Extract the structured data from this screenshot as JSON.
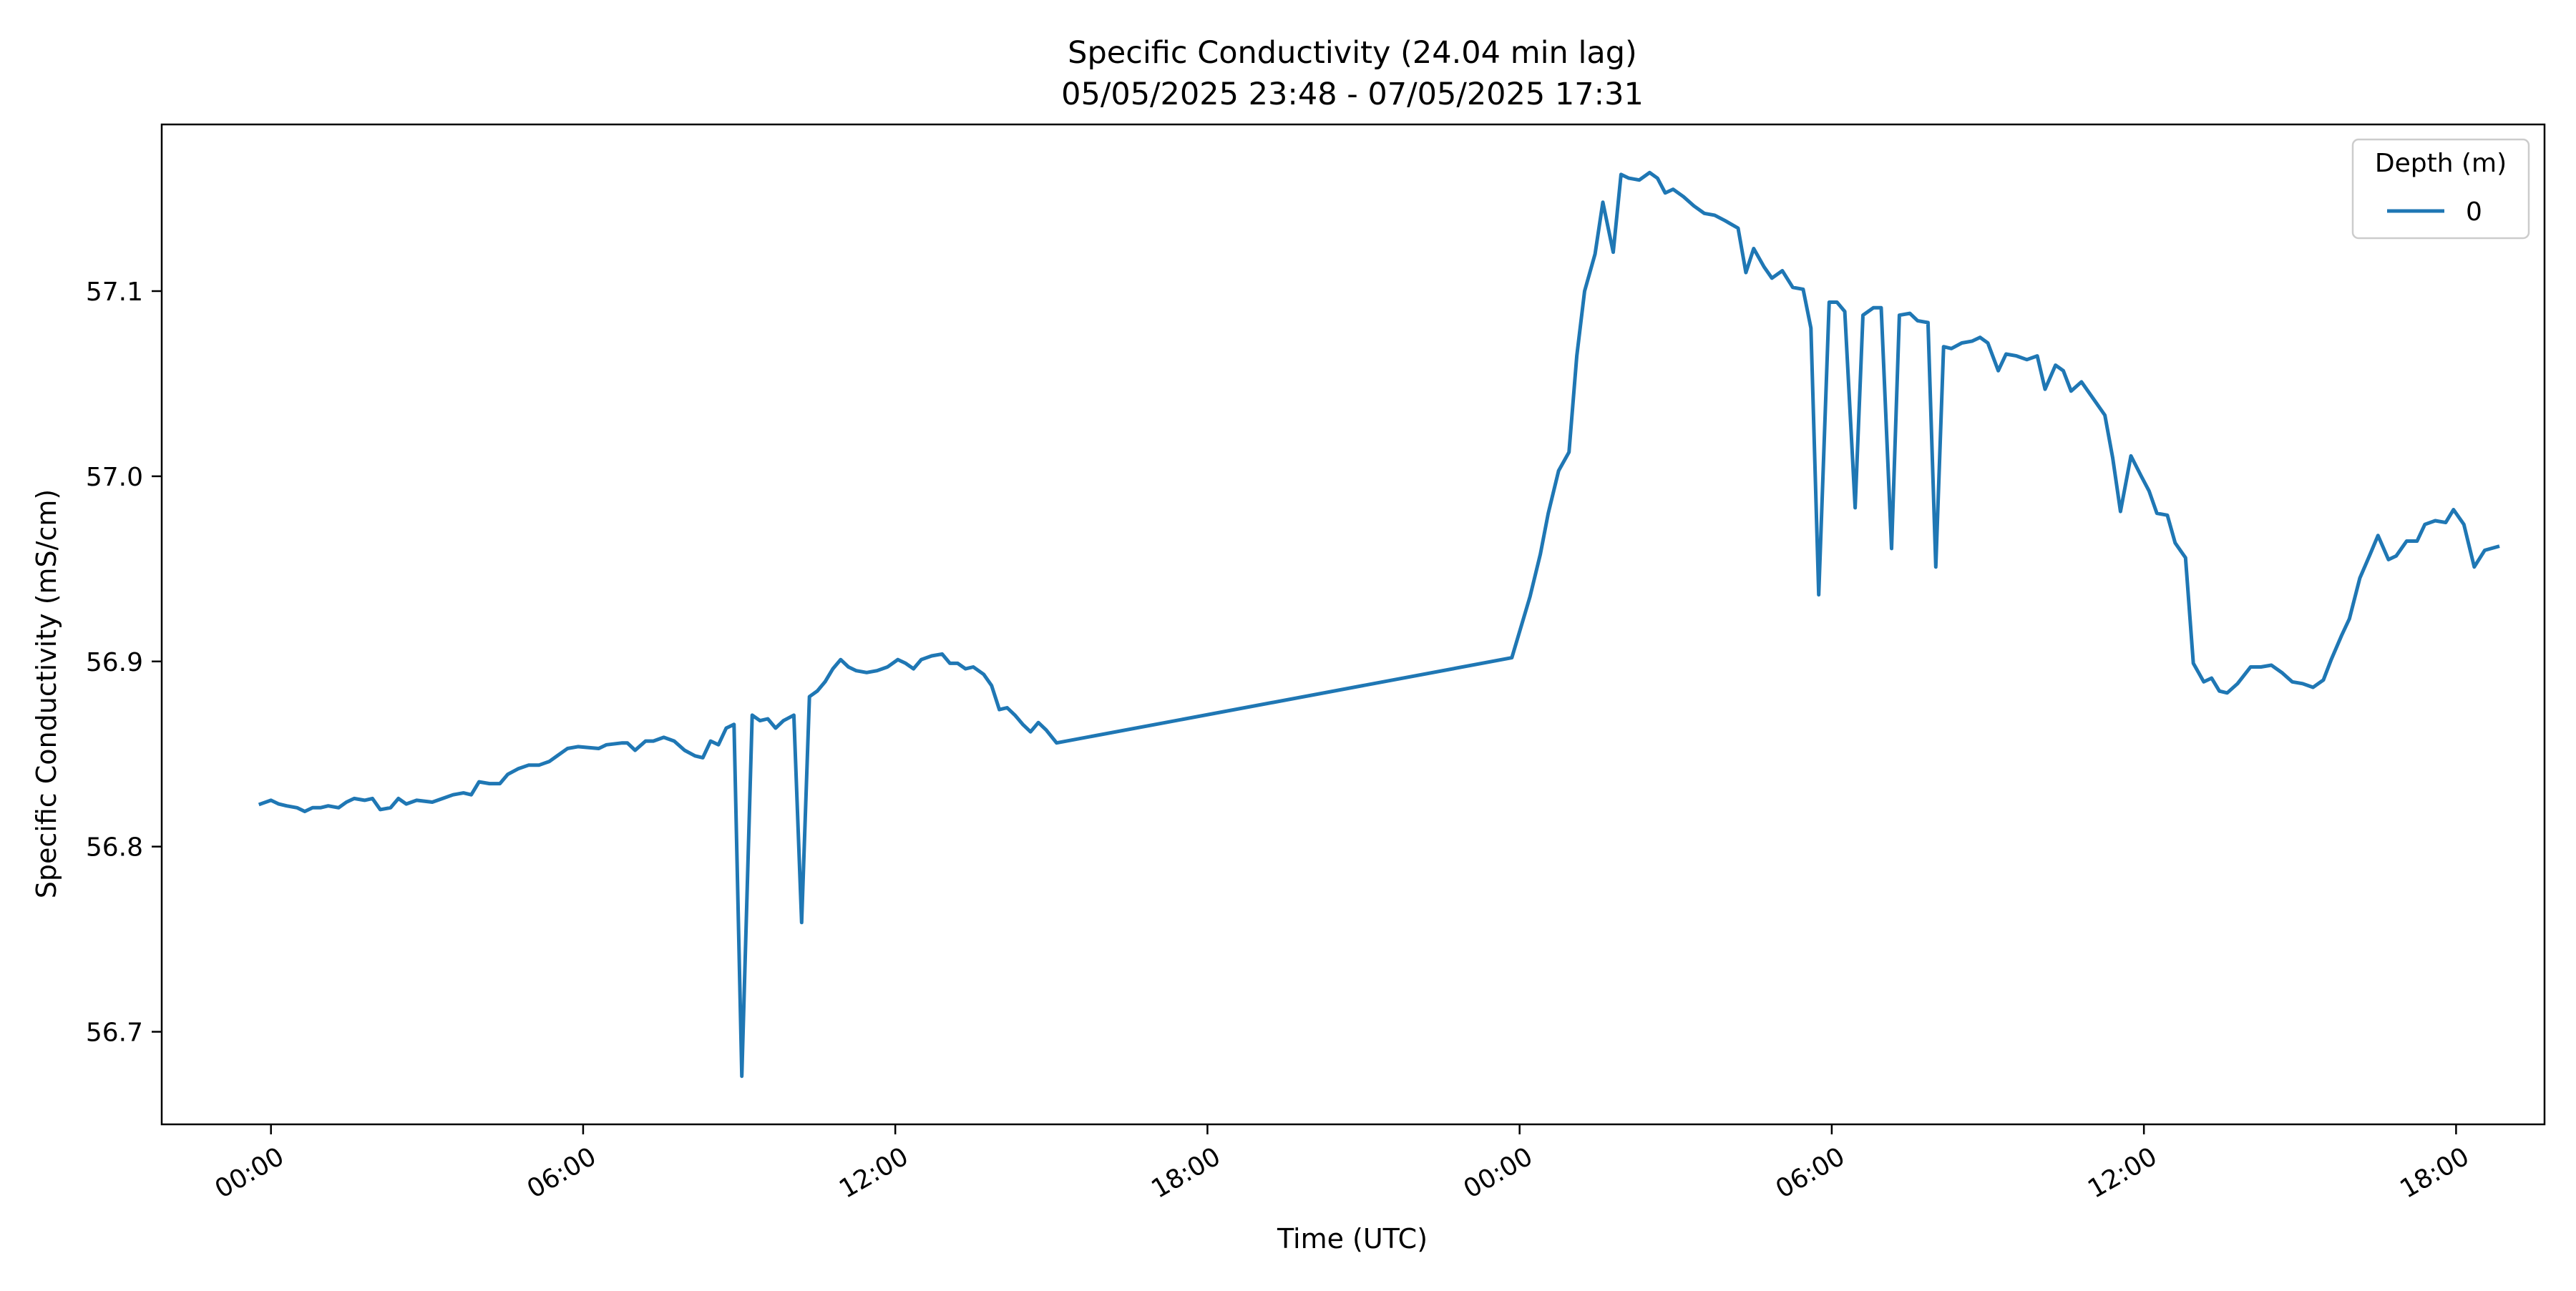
{
  "chart_data": {
    "type": "line",
    "title": "Specific Conductivity (24.04 min lag)",
    "subtitle": "05/05/2025 23:48 - 07/05/2025 17:31",
    "xlabel": "Time (UTC)",
    "ylabel": "Specific Conductivity (mS/cm)",
    "x_unit": "hours",
    "xlim": [
      -2.1,
      43.7
    ],
    "ylim": [
      56.65,
      57.19
    ],
    "x_ticks": [
      {
        "value": 0,
        "label": "00:00"
      },
      {
        "value": 6,
        "label": "06:00"
      },
      {
        "value": 12,
        "label": "12:00"
      },
      {
        "value": 18,
        "label": "18:00"
      },
      {
        "value": 24,
        "label": "00:00"
      },
      {
        "value": 30,
        "label": "06:00"
      },
      {
        "value": 36,
        "label": "12:00"
      },
      {
        "value": 42,
        "label": "18:00"
      }
    ],
    "y_ticks": [
      {
        "value": 56.7,
        "label": "56.7"
      },
      {
        "value": 56.8,
        "label": "56.8"
      },
      {
        "value": 56.9,
        "label": "56.9"
      },
      {
        "value": 57.0,
        "label": "57.0"
      },
      {
        "value": 57.1,
        "label": "57.1"
      }
    ],
    "grid": false,
    "legend": {
      "title": "Depth (m)",
      "position": "top-right"
    },
    "series": [
      {
        "name": "0",
        "color": "#1f77b4",
        "points": [
          [
            -0.2,
            56.823
          ],
          [
            0.0,
            56.825
          ],
          [
            0.15,
            56.823
          ],
          [
            0.3,
            56.822
          ],
          [
            0.5,
            56.821
          ],
          [
            0.65,
            56.819
          ],
          [
            0.8,
            56.821
          ],
          [
            0.95,
            56.821
          ],
          [
            1.1,
            56.822
          ],
          [
            1.3,
            56.821
          ],
          [
            1.45,
            56.824
          ],
          [
            1.6,
            56.826
          ],
          [
            1.8,
            56.825
          ],
          [
            1.95,
            56.826
          ],
          [
            2.1,
            56.82
          ],
          [
            2.3,
            56.821
          ],
          [
            2.45,
            56.826
          ],
          [
            2.6,
            56.823
          ],
          [
            2.8,
            56.825
          ],
          [
            3.1,
            56.824
          ],
          [
            3.3,
            56.826
          ],
          [
            3.5,
            56.828
          ],
          [
            3.7,
            56.829
          ],
          [
            3.85,
            56.828
          ],
          [
            4.0,
            56.835
          ],
          [
            4.2,
            56.834
          ],
          [
            4.4,
            56.834
          ],
          [
            4.55,
            56.839
          ],
          [
            4.75,
            56.842
          ],
          [
            4.95,
            56.844
          ],
          [
            5.15,
            56.844
          ],
          [
            5.35,
            56.846
          ],
          [
            5.5,
            56.849
          ],
          [
            5.7,
            56.853
          ],
          [
            5.9,
            56.854
          ],
          [
            6.3,
            56.853
          ],
          [
            6.45,
            56.855
          ],
          [
            6.75,
            56.856
          ],
          [
            6.85,
            56.856
          ],
          [
            7.0,
            56.852
          ],
          [
            7.2,
            56.857
          ],
          [
            7.35,
            56.857
          ],
          [
            7.55,
            56.859
          ],
          [
            7.75,
            56.857
          ],
          [
            7.95,
            56.852
          ],
          [
            8.15,
            56.849
          ],
          [
            8.3,
            56.848
          ],
          [
            8.45,
            56.857
          ],
          [
            8.6,
            56.855
          ],
          [
            8.75,
            56.864
          ],
          [
            8.9,
            56.866
          ],
          [
            9.05,
            56.676
          ],
          [
            9.25,
            56.871
          ],
          [
            9.4,
            56.868
          ],
          [
            9.55,
            56.869
          ],
          [
            9.7,
            56.864
          ],
          [
            9.85,
            56.868
          ],
          [
            10.05,
            56.871
          ],
          [
            10.2,
            56.759
          ],
          [
            10.35,
            56.881
          ],
          [
            10.5,
            56.884
          ],
          [
            10.65,
            56.889
          ],
          [
            10.8,
            56.896
          ],
          [
            10.95,
            56.901
          ],
          [
            11.1,
            56.897
          ],
          [
            11.25,
            56.895
          ],
          [
            11.45,
            56.894
          ],
          [
            11.65,
            56.895
          ],
          [
            11.85,
            56.897
          ],
          [
            12.05,
            56.901
          ],
          [
            12.2,
            56.899
          ],
          [
            12.35,
            56.896
          ],
          [
            12.5,
            56.901
          ],
          [
            12.7,
            56.903
          ],
          [
            12.9,
            56.904
          ],
          [
            13.05,
            56.899
          ],
          [
            13.2,
            56.899
          ],
          [
            13.35,
            56.896
          ],
          [
            13.5,
            56.897
          ],
          [
            13.7,
            56.893
          ],
          [
            13.85,
            56.887
          ],
          [
            14.0,
            56.874
          ],
          [
            14.15,
            56.875
          ],
          [
            14.3,
            56.871
          ],
          [
            14.45,
            56.866
          ],
          [
            14.6,
            56.862
          ],
          [
            14.75,
            56.867
          ],
          [
            14.9,
            56.863
          ],
          [
            15.1,
            56.856
          ],
          [
            23.85,
            56.902
          ],
          [
            24.2,
            56.935
          ],
          [
            24.4,
            56.958
          ],
          [
            24.55,
            56.98
          ],
          [
            24.75,
            57.003
          ],
          [
            24.95,
            57.013
          ],
          [
            25.1,
            57.065
          ],
          [
            25.25,
            57.1
          ],
          [
            25.45,
            57.12
          ],
          [
            25.6,
            57.148
          ],
          [
            25.8,
            57.121
          ],
          [
            25.95,
            57.163
          ],
          [
            26.1,
            57.161
          ],
          [
            26.3,
            57.16
          ],
          [
            26.5,
            57.164
          ],
          [
            26.65,
            57.161
          ],
          [
            26.8,
            57.153
          ],
          [
            26.95,
            57.155
          ],
          [
            27.15,
            57.151
          ],
          [
            27.35,
            57.146
          ],
          [
            27.55,
            57.142
          ],
          [
            27.75,
            57.141
          ],
          [
            27.95,
            57.138
          ],
          [
            28.2,
            57.134
          ],
          [
            28.35,
            57.11
          ],
          [
            28.5,
            57.123
          ],
          [
            28.7,
            57.113
          ],
          [
            28.85,
            57.107
          ],
          [
            29.05,
            57.111
          ],
          [
            29.25,
            57.102
          ],
          [
            29.45,
            57.101
          ],
          [
            29.6,
            57.08
          ],
          [
            29.75,
            56.936
          ],
          [
            29.95,
            57.094
          ],
          [
            30.1,
            57.094
          ],
          [
            30.25,
            57.089
          ],
          [
            30.45,
            56.983
          ],
          [
            30.6,
            57.087
          ],
          [
            30.8,
            57.091
          ],
          [
            30.95,
            57.091
          ],
          [
            31.15,
            56.961
          ],
          [
            31.3,
            57.087
          ],
          [
            31.5,
            57.088
          ],
          [
            31.65,
            57.084
          ],
          [
            31.85,
            57.083
          ],
          [
            32.0,
            56.951
          ],
          [
            32.15,
            57.07
          ],
          [
            32.3,
            57.069
          ],
          [
            32.5,
            57.072
          ],
          [
            32.7,
            57.073
          ],
          [
            32.85,
            57.075
          ],
          [
            33.0,
            57.072
          ],
          [
            33.2,
            57.057
          ],
          [
            33.35,
            57.066
          ],
          [
            33.55,
            57.065
          ],
          [
            33.75,
            57.063
          ],
          [
            33.95,
            57.065
          ],
          [
            34.1,
            57.047
          ],
          [
            34.3,
            57.06
          ],
          [
            34.45,
            57.057
          ],
          [
            34.6,
            57.046
          ],
          [
            34.8,
            57.051
          ],
          [
            34.95,
            57.045
          ],
          [
            35.1,
            57.039
          ],
          [
            35.25,
            57.033
          ],
          [
            35.4,
            57.01
          ],
          [
            35.55,
            56.981
          ],
          [
            35.75,
            57.011
          ],
          [
            35.95,
            57.0
          ],
          [
            36.1,
            56.992
          ],
          [
            36.25,
            56.98
          ],
          [
            36.45,
            56.979
          ],
          [
            36.6,
            56.964
          ],
          [
            36.8,
            56.956
          ],
          [
            36.95,
            56.899
          ],
          [
            37.15,
            56.889
          ],
          [
            37.3,
            56.891
          ],
          [
            37.45,
            56.884
          ],
          [
            37.6,
            56.883
          ],
          [
            37.8,
            56.888
          ],
          [
            38.05,
            56.897
          ],
          [
            38.25,
            56.897
          ],
          [
            38.45,
            56.898
          ],
          [
            38.65,
            56.894
          ],
          [
            38.85,
            56.889
          ],
          [
            39.05,
            56.888
          ],
          [
            39.25,
            56.886
          ],
          [
            39.45,
            56.89
          ],
          [
            39.6,
            56.901
          ],
          [
            39.8,
            56.914
          ],
          [
            39.95,
            56.923
          ],
          [
            40.15,
            56.945
          ],
          [
            40.35,
            56.958
          ],
          [
            40.5,
            56.968
          ],
          [
            40.7,
            56.955
          ],
          [
            40.85,
            56.957
          ],
          [
            41.05,
            56.965
          ],
          [
            41.25,
            56.965
          ],
          [
            41.4,
            56.974
          ],
          [
            41.6,
            56.976
          ],
          [
            41.8,
            56.975
          ],
          [
            41.95,
            56.982
          ],
          [
            42.15,
            56.974
          ],
          [
            42.35,
            56.951
          ],
          [
            42.55,
            56.96
          ],
          [
            42.8,
            56.962
          ]
        ]
      }
    ]
  }
}
